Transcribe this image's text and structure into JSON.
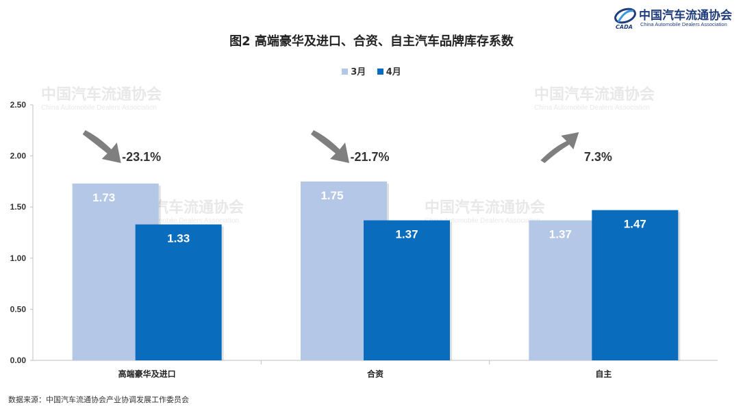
{
  "header": {
    "logo_cn": "中国汽车流通协会",
    "logo_en": "China Automobile Dealers Association",
    "logo_mark": "CADA"
  },
  "source_note": "数据来源：中国汽车流通协会产业协调发展工作委员会",
  "colors": {
    "march": "#b4c7e7",
    "april": "#0a6cbd",
    "arrow": "#7f7f7f"
  },
  "chart_data": {
    "type": "bar",
    "title": "图2  高端豪华及进口、合资、自主汽车品牌库存系数",
    "categories": [
      "高端豪华及进口",
      "合资",
      "自主"
    ],
    "series": [
      {
        "name": "3月",
        "values": [
          1.73,
          1.75,
          1.37
        ]
      },
      {
        "name": "4月",
        "values": [
          1.33,
          1.37,
          1.47
        ]
      }
    ],
    "value_labels": [
      [
        "1.73",
        "1.75",
        "1.37"
      ],
      [
        "1.33",
        "1.37",
        "1.47"
      ]
    ],
    "changes": [
      "-23.1%",
      "-21.7%",
      "7.3%"
    ],
    "change_directions": [
      "down",
      "down",
      "up"
    ],
    "yticks": [
      "0.00",
      "0.50",
      "1.00",
      "1.50",
      "2.00",
      "2.50"
    ],
    "ylim": [
      0,
      2.5
    ],
    "xlabel": "",
    "ylabel": "",
    "legend_position": "top-center",
    "grid": false
  }
}
